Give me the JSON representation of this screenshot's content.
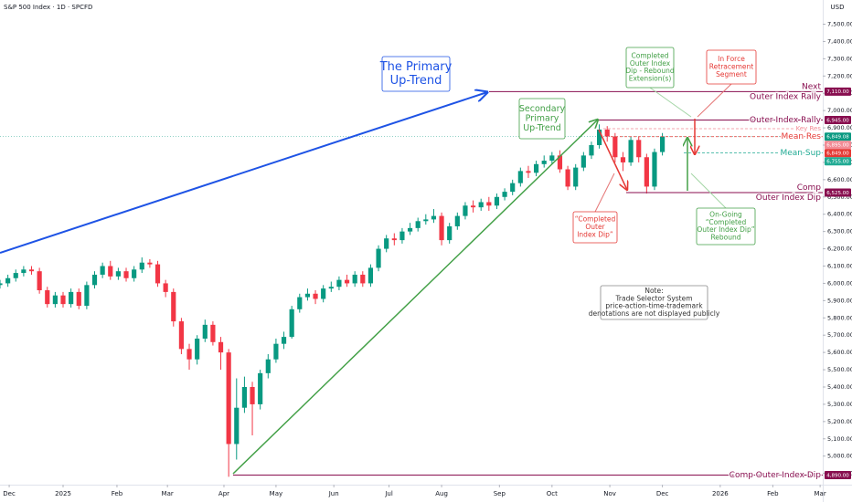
{
  "chart_data": {
    "type": "candlestick",
    "title": "S&P 500 Index · 1D · SPCFD",
    "y_axis_label": "USD",
    "up_color": "#089981",
    "down_color": "#f23645",
    "grid": false,
    "xlim": [
      0,
      313
    ],
    "xticks": [
      {
        "value": 3.5,
        "label": "Dec"
      },
      {
        "value": 24,
        "label": "2025"
      },
      {
        "value": 44.5,
        "label": "Feb"
      },
      {
        "value": 63.7,
        "label": "Mar"
      },
      {
        "value": 85.2,
        "label": "Apr"
      },
      {
        "value": 105,
        "label": "May"
      },
      {
        "value": 127,
        "label": "Jun"
      },
      {
        "value": 148,
        "label": "Jul"
      },
      {
        "value": 168,
        "label": "Aug"
      },
      {
        "value": 190,
        "label": "Sep"
      },
      {
        "value": 210,
        "label": "Oct"
      },
      {
        "value": 232,
        "label": "Nov"
      },
      {
        "value": 252,
        "label": "Dec"
      },
      {
        "value": 274,
        "label": "2026"
      },
      {
        "value": 294,
        "label": "Feb"
      },
      {
        "value": 312,
        "label": "Mar"
      }
    ],
    "ylim": [
      4840,
      7640
    ],
    "yticks": [
      {
        "value": 4900,
        "label": "4,900.00"
      },
      {
        "value": 5000,
        "label": "5,000.00"
      },
      {
        "value": 5100,
        "label": "5,100.00"
      },
      {
        "value": 5200,
        "label": "5,200.00"
      },
      {
        "value": 5300,
        "label": "5,300.00"
      },
      {
        "value": 5400,
        "label": "5,400.00"
      },
      {
        "value": 5500,
        "label": "5,500.00"
      },
      {
        "value": 5600,
        "label": "5,600.00"
      },
      {
        "value": 5700,
        "label": "5,700.00"
      },
      {
        "value": 5800,
        "label": "5,800.00"
      },
      {
        "value": 5900,
        "label": "5,900.00"
      },
      {
        "value": 6000,
        "label": "6,000.00"
      },
      {
        "value": 6100,
        "label": "6,100.00"
      },
      {
        "value": 6200,
        "label": "6,200.00"
      },
      {
        "value": 6300,
        "label": "6,300.00"
      },
      {
        "value": 6400,
        "label": "6,400.00"
      },
      {
        "value": 6500,
        "label": "6,500.00"
      },
      {
        "value": 6600,
        "label": "6,600.00"
      },
      {
        "value": 6700,
        "label": "6,700.00"
      },
      {
        "value": 6800,
        "label": "6,800.00"
      },
      {
        "value": 6900,
        "label": "6,900.00"
      },
      {
        "value": 7000,
        "label": "7,000.00"
      },
      {
        "value": 7100,
        "label": "7,100.00"
      },
      {
        "value": 7200,
        "label": "7,200.00"
      },
      {
        "value": 7300,
        "label": "7,300.00"
      },
      {
        "value": 7400,
        "label": "7,400.00"
      },
      {
        "value": 7500,
        "label": "7,500.00"
      }
    ],
    "x": [
      0,
      3,
      6,
      9,
      12,
      15,
      18,
      21,
      24,
      27,
      30,
      33,
      36,
      39,
      42,
      45,
      48,
      51,
      54,
      57,
      60,
      63,
      66,
      69,
      72,
      75,
      78,
      81,
      84,
      87,
      90,
      93,
      96,
      99,
      102,
      105,
      108,
      111,
      114,
      117,
      120,
      123,
      126,
      129,
      132,
      135,
      138,
      141,
      144,
      147,
      150,
      153,
      156,
      159,
      162,
      165,
      168,
      171,
      174,
      177,
      180,
      183,
      186,
      189,
      192,
      195,
      198,
      201,
      204,
      207,
      210,
      213,
      216,
      219,
      222,
      225,
      228,
      231,
      234,
      237,
      240,
      243,
      246,
      249,
      252
    ],
    "open": [
      5990,
      6000,
      6030,
      6060,
      6080,
      6070,
      5960,
      5880,
      5930,
      5880,
      5950,
      5870,
      5990,
      6050,
      6100,
      6040,
      6070,
      6030,
      6080,
      6120,
      6110,
      6000,
      5950,
      5780,
      5620,
      5560,
      5680,
      5760,
      5660,
      5600,
      5070,
      5280,
      5400,
      5300,
      5480,
      5560,
      5650,
      5690,
      5850,
      5920,
      5940,
      5910,
      5970,
      5980,
      6020,
      6000,
      6050,
      6000,
      6090,
      6200,
      6260,
      6250,
      6300,
      6320,
      6360,
      6370,
      6390,
      6250,
      6330,
      6390,
      6450,
      6440,
      6470,
      6450,
      6500,
      6530,
      6580,
      6650,
      6640,
      6690,
      6710,
      6740,
      6660,
      6560,
      6670,
      6740,
      6800,
      6890,
      6850,
      6730,
      6700,
      6830,
      6730,
      6560,
      6760
    ],
    "high": [
      6020,
      6050,
      6080,
      6100,
      6100,
      6090,
      5980,
      5950,
      5950,
      5970,
      5970,
      6010,
      6070,
      6120,
      6130,
      6090,
      6090,
      6100,
      6150,
      6140,
      6130,
      6020,
      5970,
      5800,
      5650,
      5700,
      5790,
      5780,
      5690,
      5620,
      5450,
      5460,
      5430,
      5500,
      5590,
      5680,
      5720,
      5870,
      5940,
      5970,
      5960,
      5990,
      6010,
      6040,
      6050,
      6070,
      6070,
      6110,
      6220,
      6280,
      6290,
      6320,
      6350,
      6380,
      6400,
      6430,
      6410,
      6350,
      6410,
      6470,
      6480,
      6490,
      6500,
      6520,
      6550,
      6600,
      6670,
      6680,
      6710,
      6740,
      6760,
      6770,
      6680,
      6690,
      6760,
      6820,
      6920,
      6910,
      6870,
      6760,
      6850,
      6850,
      6750,
      6780,
      6870
    ],
    "low": [
      5970,
      5980,
      6010,
      6040,
      6050,
      5940,
      5860,
      5860,
      5860,
      5860,
      5850,
      5850,
      5970,
      6030,
      6020,
      6020,
      6010,
      6010,
      6060,
      6090,
      5980,
      5920,
      5750,
      5590,
      5500,
      5530,
      5660,
      5640,
      5500,
      4880,
      4980,
      5250,
      5120,
      5270,
      5450,
      5540,
      5620,
      5680,
      5830,
      5900,
      5880,
      5890,
      5950,
      5960,
      5980,
      5980,
      5980,
      5980,
      6070,
      6180,
      6220,
      6230,
      6280,
      6300,
      6340,
      6350,
      6220,
      6230,
      6310,
      6370,
      6410,
      6420,
      6420,
      6430,
      6480,
      6510,
      6560,
      6610,
      6620,
      6670,
      6690,
      6640,
      6540,
      6540,
      6650,
      6720,
      6780,
      6820,
      6700,
      6650,
      6680,
      6700,
      6520,
      6540,
      6740
    ],
    "close": [
      6000,
      6030,
      6060,
      6080,
      6070,
      5960,
      5880,
      5930,
      5880,
      5950,
      5870,
      5990,
      6050,
      6100,
      6040,
      6070,
      6030,
      6080,
      6120,
      6110,
      6000,
      5950,
      5780,
      5620,
      5560,
      5680,
      5760,
      5660,
      5600,
      5070,
      5280,
      5400,
      5300,
      5480,
      5560,
      5650,
      5690,
      5850,
      5920,
      5940,
      5910,
      5970,
      5980,
      6020,
      6000,
      6050,
      6000,
      6090,
      6200,
      6260,
      6250,
      6300,
      6320,
      6360,
      6370,
      6390,
      6250,
      6330,
      6390,
      6450,
      6440,
      6470,
      6450,
      6500,
      6530,
      6580,
      6650,
      6640,
      6690,
      6710,
      6740,
      6660,
      6560,
      6670,
      6740,
      6800,
      6890,
      6850,
      6730,
      6700,
      6830,
      6730,
      6560,
      6760,
      6850
    ],
    "last_price": {
      "value": 6849.08,
      "label": "6,849.08",
      "color": "#089981"
    },
    "levels": [
      {
        "lines": [
          "Next",
          "Outer Index Rally"
        ],
        "value": 7110,
        "label": "7,110.00",
        "color": "#880e4f",
        "dashed": false
      },
      {
        "lines": [
          "Outer Index Rally"
        ],
        "value": 6945,
        "label": "6,945.00",
        "color": "#880e4f",
        "dashed": false
      },
      {
        "lines": [
          "Key Res"
        ],
        "value": 6895,
        "label": "6,895.00",
        "color": "#f28b95",
        "dashed": true
      },
      {
        "lines": [
          "Mean Res"
        ],
        "value": 6849,
        "label": "6,849.00",
        "color": "#e53935",
        "dashed": true
      },
      {
        "lines": [
          "Mean Sup"
        ],
        "value": 6755,
        "label": "6,755.00",
        "color": "#22ab94",
        "dashed": true
      },
      {
        "lines": [
          "Comp",
          "Outer Index Dip"
        ],
        "value": 6525,
        "label": "6,525.00",
        "color": "#880e4f",
        "dashed": false
      },
      {
        "lines": [
          "Comp Outer Index Dip"
        ],
        "value": 4890,
        "label": "4,890.00",
        "color": "#880e4f",
        "dashed": false
      }
    ],
    "annotations": [
      {
        "lines": [
          "The Primary",
          "Up-Trend"
        ],
        "color": "#1e53e5"
      },
      {
        "lines": [
          "Secondary",
          "Primary",
          "Up-Trend"
        ],
        "color": "#43a047"
      },
      {
        "lines": [
          "Completed",
          "Outer Index",
          "Dip - Rebound",
          "Extension(s)"
        ],
        "color": "#43a047"
      },
      {
        "lines": [
          "In Force",
          "Retracement",
          "Segment"
        ],
        "color": "#e53935"
      },
      {
        "lines": [
          "“Completed",
          "Outer",
          "Index Dip”"
        ],
        "color": "#e53935"
      },
      {
        "lines": [
          "On-Going",
          "“Completed",
          "Outer Index Dip”",
          "Rebound"
        ],
        "color": "#43a047"
      },
      {
        "lines": [
          "Note:",
          "Trade Selector System",
          "price-action-time-trademark",
          "denotations are not displayed publicly"
        ],
        "color": "#333333"
      }
    ]
  }
}
